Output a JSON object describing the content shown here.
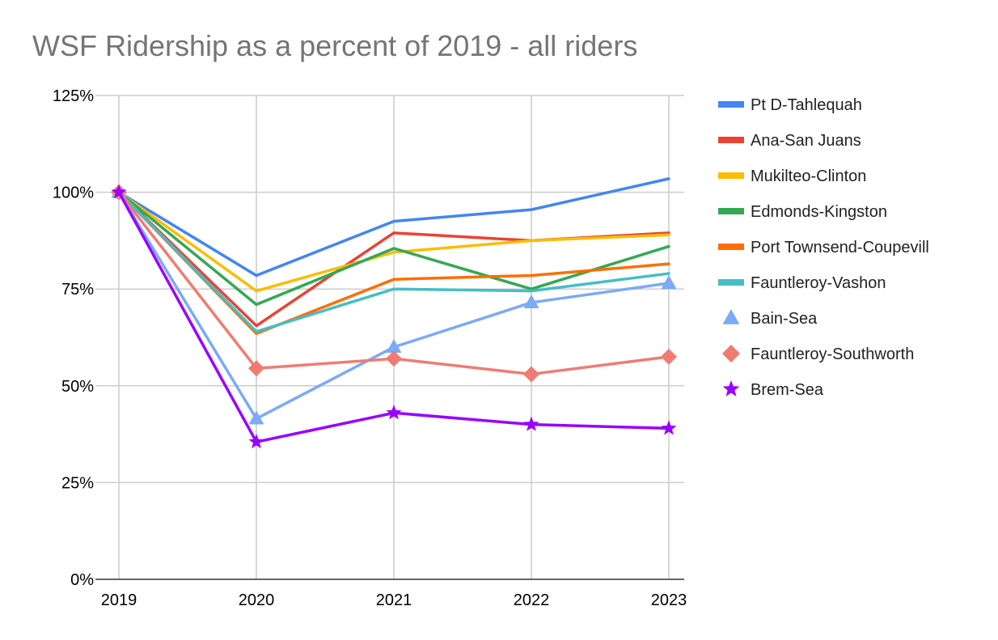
{
  "chart_data": {
    "type": "line",
    "title": "WSF Ridership as a percent of 2019 - all riders",
    "xlabel": "",
    "ylabel": "",
    "categories": [
      "2019",
      "2020",
      "2021",
      "2022",
      "2023"
    ],
    "ylim": [
      0,
      125
    ],
    "yticks": [
      0,
      25,
      50,
      75,
      100,
      125
    ],
    "ytick_labels": [
      "0%",
      "25%",
      "50%",
      "75%",
      "100%",
      "125%"
    ],
    "grid": true,
    "legend_position": "right",
    "series": [
      {
        "name": "Pt D-Tahlequah",
        "color": "#4285f4",
        "marker": "none",
        "values": [
          100,
          78.5,
          92.5,
          95.5,
          103.5
        ]
      },
      {
        "name": "Ana-San Juans",
        "color": "#ea4335",
        "marker": "none",
        "values": [
          100,
          65.5,
          89.5,
          87.5,
          89.5
        ]
      },
      {
        "name": "Mukilteo-Clinton",
        "color": "#fbbc04",
        "marker": "none",
        "values": [
          100,
          74.5,
          84.5,
          87.5,
          89
        ]
      },
      {
        "name": "Edmonds-Kingston",
        "color": "#34a853",
        "marker": "none",
        "values": [
          100,
          71,
          85.5,
          75,
          86
        ]
      },
      {
        "name": "Port Townsend-Coupevill",
        "color": "#ff6d01",
        "marker": "none",
        "values": [
          100,
          63.5,
          77.5,
          78.5,
          81.5
        ]
      },
      {
        "name": "Fauntleroy-Vashon",
        "color": "#46bdc6",
        "marker": "none",
        "values": [
          100,
          64,
          75,
          74.5,
          79
        ]
      },
      {
        "name": "Bain-Sea",
        "color": "#7baaf7",
        "marker": "triangle",
        "values": [
          100,
          41.5,
          60,
          71.5,
          76.5
        ]
      },
      {
        "name": "Fauntleroy-Southworth",
        "color": "#f07b72",
        "marker": "diamond",
        "values": [
          100,
          54.5,
          57,
          53,
          57.5
        ]
      },
      {
        "name": "Brem-Sea",
        "color": "#9900ff",
        "marker": "star",
        "values": [
          100,
          35.5,
          43,
          40,
          39
        ]
      }
    ]
  }
}
